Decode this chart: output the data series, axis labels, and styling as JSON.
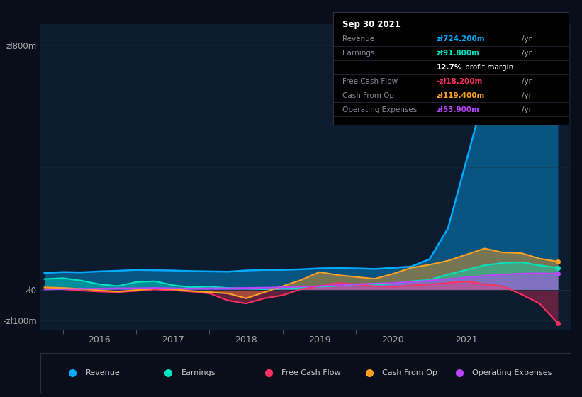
{
  "bg_color": "#0a0e1a",
  "plot_bg_color": "#0d1b2e",
  "fig_width": 8.21,
  "fig_height": 5.6,
  "dpi": 100,
  "ylim": [
    -130,
    870
  ],
  "yticks": [
    -100,
    0,
    800
  ],
  "ytick_labels": [
    "-zł100m",
    "zł0",
    "zł800m"
  ],
  "grid_lines": [
    -100,
    0,
    400,
    800
  ],
  "xlim_start": 2014.7,
  "xlim_end": 2021.92,
  "xtick_positions": [
    2015.5,
    2016.5,
    2017.5,
    2018.5,
    2019.5,
    2020.5,
    2021.5
  ],
  "xtick_labels": [
    "2016",
    "2017",
    "2018",
    "2019",
    "2020",
    "2021",
    ""
  ],
  "grid_color": "#1e2d3d",
  "revenue_color": "#00aaff",
  "earnings_color": "#00e5c0",
  "fcf_color": "#ff3060",
  "cashfromop_color": "#ffa020",
  "opex_color": "#bb44ff",
  "legend_items": [
    {
      "label": "Revenue",
      "color": "#00aaff"
    },
    {
      "label": "Earnings",
      "color": "#00e5c0"
    },
    {
      "label": "Free Cash Flow",
      "color": "#ff3060"
    },
    {
      "label": "Cash From Op",
      "color": "#ffa020"
    },
    {
      "label": "Operating Expenses",
      "color": "#bb44ff"
    }
  ],
  "infobox_title": "Sep 30 2021",
  "infobox_bg": "#000000",
  "infobox_border": "#2a3040",
  "infobox_label_color": "#888899",
  "infobox_title_color": "#ffffff",
  "x_data": [
    2014.75,
    2015.0,
    2015.25,
    2015.5,
    2015.75,
    2016.0,
    2016.25,
    2016.5,
    2016.75,
    2017.0,
    2017.25,
    2017.5,
    2017.75,
    2018.0,
    2018.25,
    2018.5,
    2018.75,
    2019.0,
    2019.25,
    2019.5,
    2019.75,
    2020.0,
    2020.25,
    2020.5,
    2020.75,
    2021.0,
    2021.25,
    2021.5,
    2021.75
  ],
  "revenue": [
    55,
    58,
    57,
    60,
    62,
    65,
    64,
    63,
    61,
    60,
    59,
    63,
    65,
    65,
    67,
    70,
    71,
    70,
    68,
    72,
    76,
    100,
    200,
    420,
    640,
    760,
    730,
    724,
    724
  ],
  "earnings": [
    35,
    38,
    30,
    18,
    12,
    25,
    28,
    15,
    8,
    10,
    6,
    4,
    2,
    4,
    7,
    10,
    13,
    18,
    16,
    20,
    28,
    32,
    50,
    65,
    80,
    88,
    90,
    80,
    72
  ],
  "fcf": [
    3,
    2,
    -3,
    -6,
    -8,
    -4,
    1,
    -2,
    -6,
    -12,
    -35,
    -45,
    -28,
    -18,
    2,
    12,
    22,
    18,
    12,
    10,
    14,
    18,
    22,
    28,
    18,
    12,
    -15,
    -45,
    -110
  ],
  "cashfromop": [
    8,
    6,
    3,
    -2,
    -6,
    -1,
    4,
    2,
    -4,
    -8,
    -12,
    -28,
    -8,
    12,
    32,
    58,
    48,
    42,
    36,
    52,
    72,
    82,
    95,
    115,
    135,
    122,
    120,
    102,
    92
  ],
  "opex": [
    1,
    2,
    3,
    4,
    5,
    5,
    6,
    5,
    4,
    5,
    5,
    6,
    7,
    8,
    10,
    12,
    15,
    18,
    20,
    22,
    26,
    30,
    35,
    40,
    46,
    50,
    53,
    54,
    53
  ]
}
